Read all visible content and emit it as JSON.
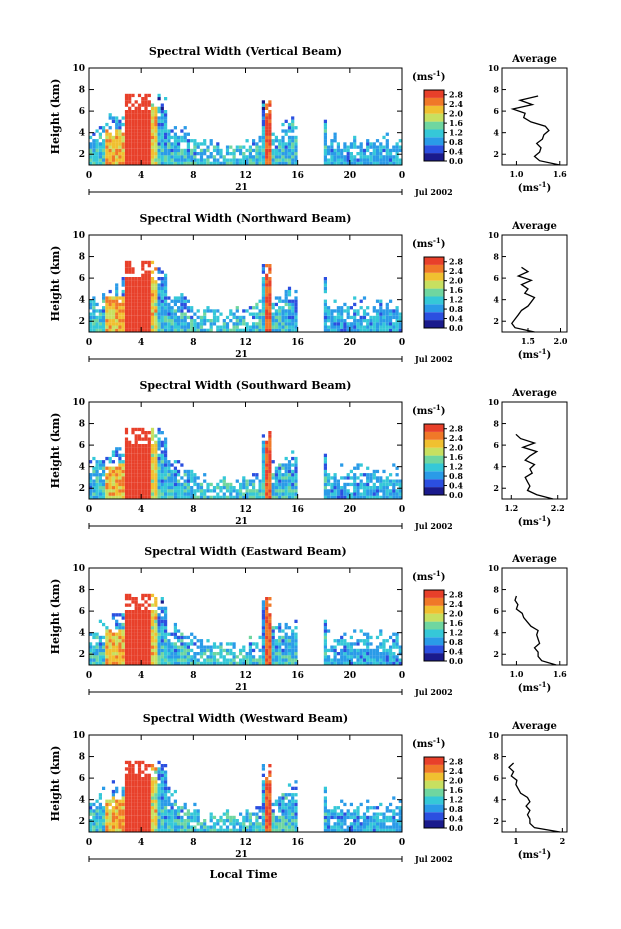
{
  "figure": {
    "x_label": "Local Time",
    "day_label": "21",
    "date_label": "Jul 2002",
    "y_label": "Height (km)",
    "cbar_unit": "(ms",
    "cbar_unit_sup": "-1",
    "cbar_unit_close": ")",
    "avg_title": "Average",
    "avg_xlabel": "(ms",
    "avg_xlabel_sup": "-1",
    "avg_xlabel_close": ")"
  },
  "chart_data": [
    {
      "type": "heatmap",
      "title": "Spectral Width (Vertical Beam)",
      "x_ticks": [
        "0",
        "4",
        "8",
        "12",
        "16",
        "20",
        "0"
      ],
      "x_range": [
        0,
        24
      ],
      "y_ticks": [
        "2",
        "4",
        "6",
        "8",
        "10"
      ],
      "y_range": [
        1,
        10
      ],
      "colorbar_ticks": [
        "0.0",
        "0.4",
        "0.8",
        "1.2",
        "1.6",
        "2.0",
        "2.4",
        "2.8"
      ],
      "colorbar_range": [
        0,
        3
      ],
      "colors": [
        "#1a1a8c",
        "#2b4fe0",
        "#2a9be8",
        "#35c8d8",
        "#6fd6a0",
        "#c8e060",
        "#f0c030",
        "#f07828",
        "#e8402a"
      ],
      "profile": {
        "type": "line",
        "x_ticks": [
          "1.0",
          "1.6"
        ],
        "x_range": [
          0.8,
          1.7
        ],
        "y_range": [
          1,
          10
        ],
        "height": [
          1.0,
          1.4,
          1.8,
          2.2,
          2.6,
          3.0,
          3.4,
          3.8,
          4.2,
          4.6,
          5.0,
          5.4,
          5.8,
          6.2,
          6.6,
          7.0,
          7.4
        ],
        "value": [
          1.6,
          1.32,
          1.25,
          1.32,
          1.34,
          1.28,
          1.36,
          1.38,
          1.45,
          1.4,
          1.2,
          1.1,
          1.12,
          0.95,
          1.22,
          1.05,
          1.3
        ]
      }
    },
    {
      "type": "heatmap",
      "title": "Spectral Width (Northward Beam)",
      "x_ticks": [
        "0",
        "4",
        "8",
        "12",
        "16",
        "20",
        "0"
      ],
      "x_range": [
        0,
        24
      ],
      "y_ticks": [
        "2",
        "4",
        "6",
        "8",
        "10"
      ],
      "y_range": [
        1,
        10
      ],
      "colorbar_ticks": [
        "0.0",
        "0.4",
        "0.8",
        "1.2",
        "1.6",
        "2.0",
        "2.4",
        "2.8"
      ],
      "colorbar_range": [
        0,
        3
      ],
      "colors": [
        "#1a1a8c",
        "#2b4fe0",
        "#2a9be8",
        "#35c8d8",
        "#6fd6a0",
        "#c8e060",
        "#f0c030",
        "#f07828",
        "#e8402a"
      ],
      "profile": {
        "type": "line",
        "x_ticks": [
          "1.5",
          "2.0"
        ],
        "x_range": [
          1.1,
          2.1
        ],
        "y_range": [
          1,
          10
        ],
        "height": [
          1.0,
          1.4,
          1.8,
          2.2,
          2.6,
          3.0,
          3.4,
          3.8,
          4.2,
          4.6,
          5.0,
          5.4,
          5.8,
          6.2,
          6.6,
          7.0
        ],
        "value": [
          1.6,
          1.3,
          1.25,
          1.3,
          1.35,
          1.4,
          1.5,
          1.55,
          1.6,
          1.45,
          1.5,
          1.4,
          1.55,
          1.35,
          1.5,
          1.4
        ]
      }
    },
    {
      "type": "heatmap",
      "title": "Spectral Width (Southward Beam)",
      "x_ticks": [
        "0",
        "4",
        "8",
        "12",
        "16",
        "20",
        "0"
      ],
      "x_range": [
        0,
        24
      ],
      "y_ticks": [
        "2",
        "4",
        "6",
        "8",
        "10"
      ],
      "y_range": [
        1,
        10
      ],
      "colorbar_ticks": [
        "0.0",
        "0.4",
        "0.8",
        "1.2",
        "1.6",
        "2.0",
        "2.4",
        "2.8"
      ],
      "colorbar_range": [
        0,
        3
      ],
      "colors": [
        "#1a1a8c",
        "#2b4fe0",
        "#2a9be8",
        "#35c8d8",
        "#6fd6a0",
        "#c8e060",
        "#f0c030",
        "#f07828",
        "#e8402a"
      ],
      "profile": {
        "type": "line",
        "x_ticks": [
          "1.2",
          "2.2"
        ],
        "x_range": [
          1.0,
          2.4
        ],
        "y_range": [
          1,
          10
        ],
        "height": [
          1.0,
          1.4,
          1.8,
          2.2,
          2.6,
          3.0,
          3.4,
          3.8,
          4.2,
          4.6,
          5.0,
          5.4,
          5.8,
          6.2,
          6.6,
          7.0
        ],
        "value": [
          2.1,
          1.75,
          1.55,
          1.6,
          1.55,
          1.5,
          1.65,
          1.6,
          1.7,
          1.5,
          1.6,
          1.75,
          1.45,
          1.7,
          1.4,
          1.3
        ]
      }
    },
    {
      "type": "heatmap",
      "title": "Spectral Width (Eastward Beam)",
      "x_ticks": [
        "0",
        "4",
        "8",
        "12",
        "16",
        "20",
        "0"
      ],
      "x_range": [
        0,
        24
      ],
      "y_ticks": [
        "2",
        "4",
        "6",
        "8",
        "10"
      ],
      "y_range": [
        1,
        10
      ],
      "colorbar_ticks": [
        "0.0",
        "0.4",
        "0.8",
        "1.2",
        "1.6",
        "2.0",
        "2.4",
        "2.8"
      ],
      "colorbar_range": [
        0,
        3
      ],
      "colors": [
        "#1a1a8c",
        "#2b4fe0",
        "#2a9be8",
        "#35c8d8",
        "#6fd6a0",
        "#c8e060",
        "#f0c030",
        "#f07828",
        "#e8402a"
      ],
      "profile": {
        "type": "line",
        "x_ticks": [
          "1.0",
          "1.6"
        ],
        "x_range": [
          0.8,
          1.7
        ],
        "y_range": [
          1,
          10
        ],
        "height": [
          1.0,
          1.4,
          1.8,
          2.2,
          2.6,
          3.0,
          3.4,
          3.8,
          4.2,
          4.6,
          5.0,
          5.4,
          5.8,
          6.2,
          6.6,
          7.0,
          7.4
        ],
        "value": [
          1.55,
          1.35,
          1.3,
          1.3,
          1.25,
          1.32,
          1.3,
          1.28,
          1.3,
          1.2,
          1.15,
          1.1,
          1.08,
          1.0,
          1.02,
          0.98,
          1.0
        ]
      }
    },
    {
      "type": "heatmap",
      "title": "Spectral Width (Westward Beam)",
      "x_ticks": [
        "0",
        "4",
        "8",
        "12",
        "16",
        "20",
        "0"
      ],
      "x_range": [
        0,
        24
      ],
      "y_ticks": [
        "2",
        "4",
        "6",
        "8",
        "10"
      ],
      "y_range": [
        1,
        10
      ],
      "colorbar_ticks": [
        "0.0",
        "0.4",
        "0.8",
        "1.2",
        "1.6",
        "2.0",
        "2.4",
        "2.8"
      ],
      "colorbar_range": [
        0,
        3
      ],
      "colors": [
        "#1a1a8c",
        "#2b4fe0",
        "#2a9be8",
        "#35c8d8",
        "#6fd6a0",
        "#c8e060",
        "#f0c030",
        "#f07828",
        "#e8402a"
      ],
      "profile": {
        "type": "line",
        "x_ticks": [
          "1",
          "2"
        ],
        "x_range": [
          0.7,
          2.1
        ],
        "y_range": [
          1,
          10
        ],
        "height": [
          1.0,
          1.4,
          1.8,
          2.2,
          2.6,
          3.0,
          3.4,
          3.8,
          4.2,
          4.6,
          5.0,
          5.4,
          5.8,
          6.2,
          6.6,
          7.0,
          7.4
        ],
        "value": [
          1.95,
          1.4,
          1.3,
          1.3,
          1.25,
          1.3,
          1.22,
          1.3,
          1.25,
          1.1,
          1.05,
          1.0,
          1.02,
          0.9,
          0.95,
          0.85,
          0.95
        ]
      }
    }
  ]
}
